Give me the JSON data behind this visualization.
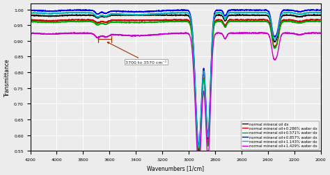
{
  "title": "",
  "xlabel": "Wavenumbers [1/cm]",
  "ylabel": "Transmittance",
  "xlim": [
    4200,
    2000
  ],
  "ylim": [
    0.55,
    1.02
  ],
  "yticks": [
    0.55,
    0.6,
    0.65,
    0.7,
    0.75,
    0.8,
    0.85,
    0.9,
    0.95,
    1.0
  ],
  "xticks": [
    4200,
    4000,
    3800,
    3600,
    3400,
    3200,
    3000,
    2800,
    2600,
    2400,
    2200,
    2000
  ],
  "legend_labels": [
    "normal mineral oil dx",
    "normal mineral oil+0.286% water dx",
    "normal mineral oil+0.571% water dx",
    "normal mineral oil+0.857% water dx",
    "normal mineral oil+1.143% water dx",
    "normal mineral oil+1.429% water dx"
  ],
  "legend_colors": [
    "#111111",
    "#cc0000",
    "#00aa00",
    "#0000ee",
    "#00bbbb",
    "#cc00cc"
  ],
  "annotation_text": "3700 to 3570 cm⁻¹",
  "background_color": "#ececec",
  "grid_color": "#ffffff",
  "base_levels": [
    0.982,
    0.967,
    0.962,
    0.998,
    0.99,
    0.925
  ],
  "water_pcts": [
    0.0,
    0.286,
    0.571,
    0.857,
    1.143,
    1.429
  ]
}
